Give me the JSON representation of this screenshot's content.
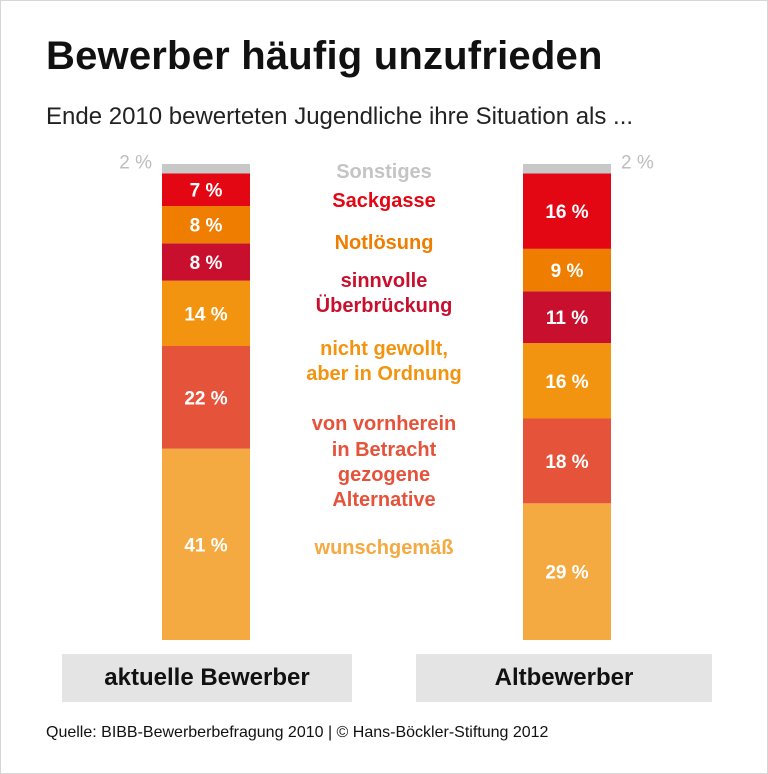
{
  "title": "Bewerber häufig unzufrieden",
  "subtitle": "Ende 2010 bewerteten Jugendliche ihre Situation als ...",
  "source": "Quelle: BIBB-Bewerberbefragung 2010 | © Hans-Böckler-Stiftung 2012",
  "chart_data": {
    "type": "bar",
    "stacked": true,
    "percent_stacked": true,
    "categories": [
      "aktuelle Bewerber",
      "Altbewerber"
    ],
    "series": [
      {
        "key": "wunsch",
        "name": "wunschgemäß",
        "values": [
          41,
          29
        ],
        "labels": [
          "41 %",
          "29 %"
        ],
        "color": "#f5a941"
      },
      {
        "key": "vorn",
        "name": "von vornherein in Betracht gezogene Alternative",
        "lines": [
          "von vornherein",
          "in Betracht",
          "gezogene",
          "Alternative"
        ],
        "values": [
          22,
          18
        ],
        "labels": [
          "22 %",
          "18 %"
        ],
        "color": "#e5533a"
      },
      {
        "key": "ngewollt",
        "name": "nicht gewollt, aber in Ordnung",
        "lines": [
          "nicht gewollt,",
          "aber in Ordnung"
        ],
        "values": [
          14,
          16
        ],
        "labels": [
          "14 %",
          "16 %"
        ],
        "color": "#f29410"
      },
      {
        "key": "sinnvoll",
        "name": "sinnvolle Überbrückung",
        "lines": [
          "sinnvolle",
          "Überbrückung"
        ],
        "values": [
          8,
          11
        ],
        "labels": [
          "8 %",
          "11 %"
        ],
        "color": "#c8102e"
      },
      {
        "key": "notl",
        "name": "Notlösung",
        "values": [
          8,
          9
        ],
        "labels": [
          "8 %",
          "9 %"
        ],
        "color": "#ef7d00"
      },
      {
        "key": "sack",
        "name": "Sackgasse",
        "values": [
          7,
          16
        ],
        "labels": [
          "7 %",
          "16 %"
        ],
        "color": "#e30613"
      },
      {
        "key": "sonst",
        "name": "Sonstiges",
        "values": [
          2,
          2
        ],
        "labels": [
          "2 %",
          "2 %"
        ],
        "color": "#c8c8c8"
      }
    ],
    "legend_placement": "center-between-bars",
    "grid": false,
    "colors": {
      "outside_label": "#bdbdbd",
      "bar_label": "#ffffff"
    }
  }
}
